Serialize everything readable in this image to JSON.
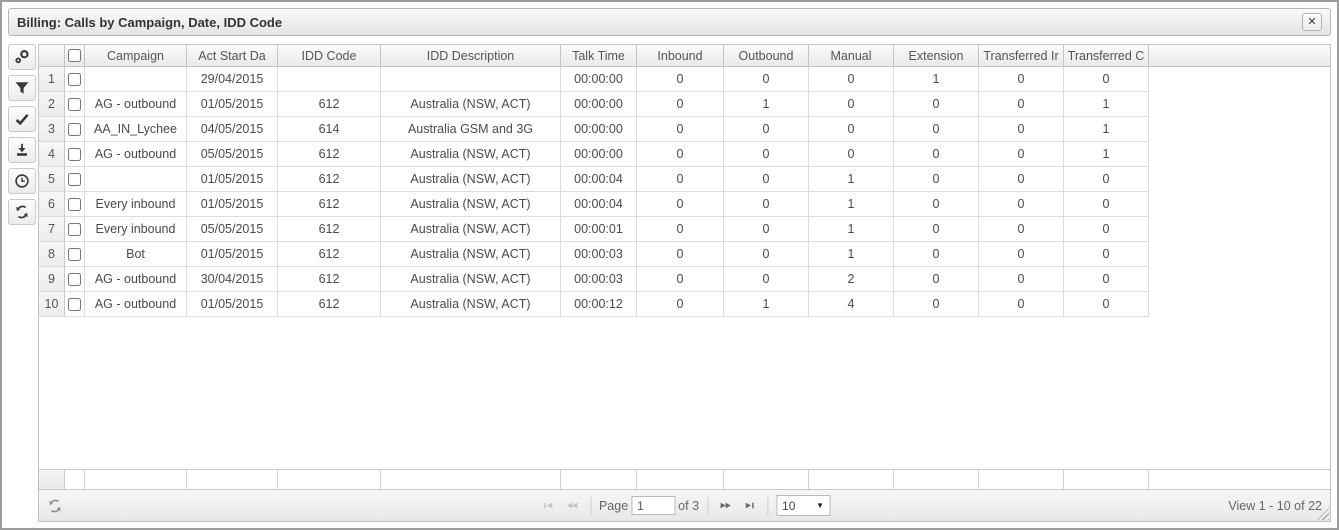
{
  "window": {
    "title": "Billing: Calls by Campaign, Date, IDD Code"
  },
  "toolbar": {
    "buttons": [
      {
        "icon": "settings-icon"
      },
      {
        "icon": "filter-icon"
      },
      {
        "icon": "check-icon"
      },
      {
        "icon": "download-icon"
      },
      {
        "icon": "clock-icon"
      },
      {
        "icon": "refresh-icon"
      }
    ]
  },
  "grid": {
    "columns": [
      {
        "key": "campaign",
        "label": "Campaign"
      },
      {
        "key": "act-start-date",
        "label": "Act Start Da"
      },
      {
        "key": "idd-code",
        "label": "IDD Code"
      },
      {
        "key": "idd-description",
        "label": "IDD Description"
      },
      {
        "key": "talk-time",
        "label": "Talk Time"
      },
      {
        "key": "inbound",
        "label": "Inbound"
      },
      {
        "key": "outbound",
        "label": "Outbound"
      },
      {
        "key": "manual",
        "label": "Manual"
      },
      {
        "key": "extension",
        "label": "Extension"
      },
      {
        "key": "transferred-in",
        "label": "Transferred Ir"
      },
      {
        "key": "transferred-out",
        "label": "Transferred C"
      }
    ],
    "rows": [
      {
        "num": "1",
        "cells": [
          "",
          "29/04/2015",
          "",
          "",
          "00:00:00",
          "0",
          "0",
          "0",
          "1",
          "0",
          "0"
        ]
      },
      {
        "num": "2",
        "cells": [
          "AG - outbound",
          "01/05/2015",
          "612",
          "Australia (NSW, ACT)",
          "00:00:00",
          "0",
          "1",
          "0",
          "0",
          "0",
          "1"
        ]
      },
      {
        "num": "3",
        "cells": [
          "AA_IN_Lychee",
          "04/05/2015",
          "614",
          "Australia GSM and 3G",
          "00:00:00",
          "0",
          "0",
          "0",
          "0",
          "0",
          "1"
        ]
      },
      {
        "num": "4",
        "cells": [
          "AG - outbound",
          "05/05/2015",
          "612",
          "Australia (NSW, ACT)",
          "00:00:00",
          "0",
          "0",
          "0",
          "0",
          "0",
          "1"
        ]
      },
      {
        "num": "5",
        "cells": [
          "",
          "01/05/2015",
          "612",
          "Australia (NSW, ACT)",
          "00:00:04",
          "0",
          "0",
          "1",
          "0",
          "0",
          "0"
        ]
      },
      {
        "num": "6",
        "cells": [
          "Every inbound",
          "01/05/2015",
          "612",
          "Australia (NSW, ACT)",
          "00:00:04",
          "0",
          "0",
          "1",
          "0",
          "0",
          "0"
        ]
      },
      {
        "num": "7",
        "cells": [
          "Every inbound",
          "05/05/2015",
          "612",
          "Australia (NSW, ACT)",
          "00:00:01",
          "0",
          "0",
          "1",
          "0",
          "0",
          "0"
        ]
      },
      {
        "num": "8",
        "cells": [
          "Bot",
          "01/05/2015",
          "612",
          "Australia (NSW, ACT)",
          "00:00:03",
          "0",
          "0",
          "1",
          "0",
          "0",
          "0"
        ]
      },
      {
        "num": "9",
        "cells": [
          "AG - outbound",
          "30/04/2015",
          "612",
          "Australia (NSW, ACT)",
          "00:00:03",
          "0",
          "0",
          "2",
          "0",
          "0",
          "0"
        ]
      },
      {
        "num": "10",
        "cells": [
          "AG - outbound",
          "01/05/2015",
          "612",
          "Australia (NSW, ACT)",
          "00:00:12",
          "0",
          "1",
          "4",
          "0",
          "0",
          "0"
        ]
      }
    ]
  },
  "pager": {
    "page_label": "Page",
    "page_value": "1",
    "total_pages_label": "of 3",
    "page_size_value": "10",
    "view_text": "View 1 - 10 of 22"
  }
}
